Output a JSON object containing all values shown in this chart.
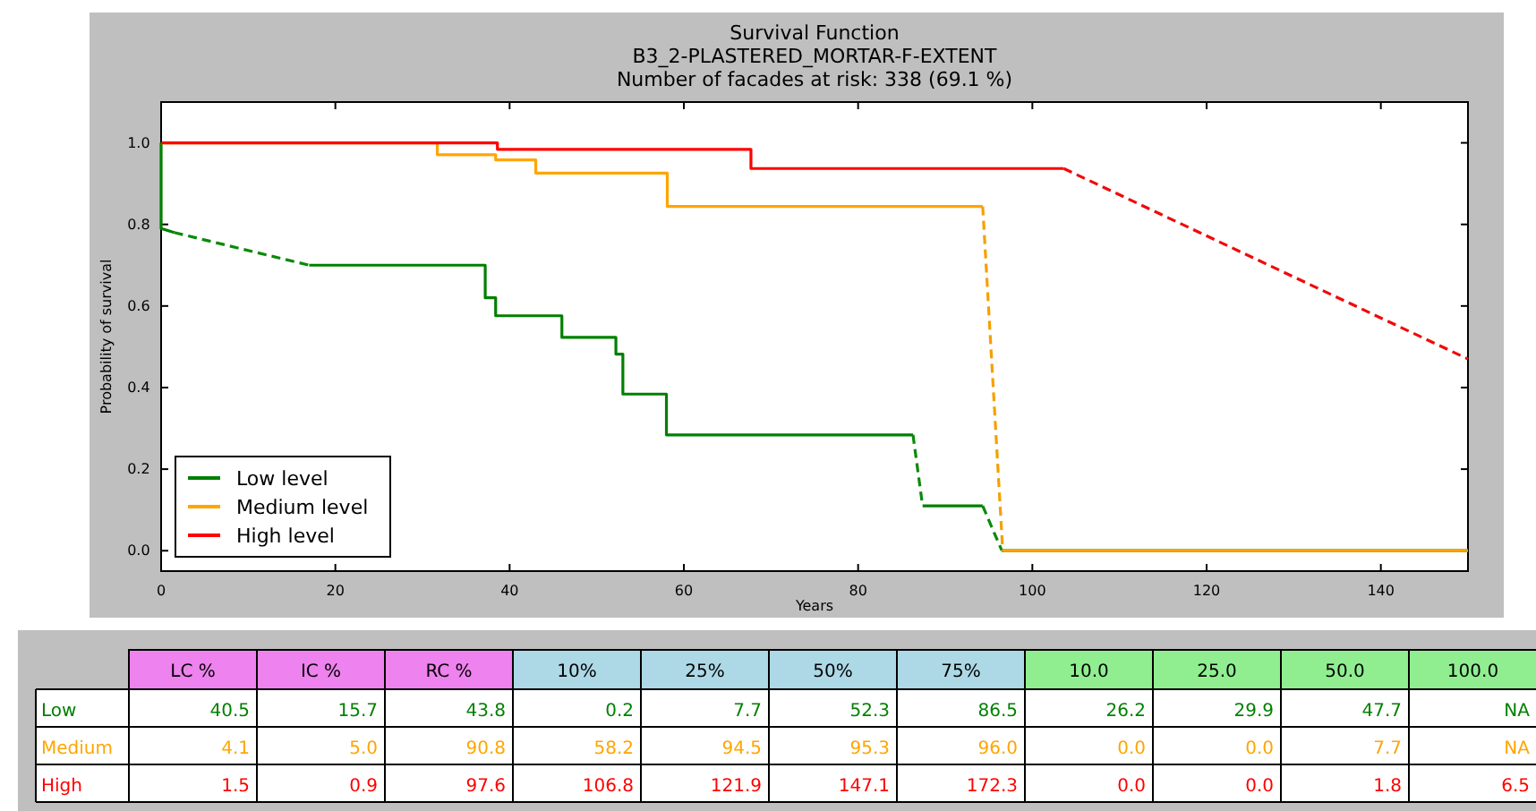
{
  "chart_data": [
    {
      "type": "line",
      "title": "Survival Function",
      "subtitle": "B3_2-PLASTERED_MORTAR-F-EXTENT\nNumber of facades at risk: 338 (69.1 %)",
      "xlabel": "Years",
      "ylabel": "Probability of survival",
      "xlim": [
        0,
        150
      ],
      "ylim": [
        -0.05,
        1.1
      ],
      "xticks": [
        0,
        20,
        40,
        60,
        80,
        100,
        120,
        140
      ],
      "yticks": [
        {
          "value": 0,
          "label": "0.0"
        },
        {
          "value": 0.2,
          "label": "0.2"
        },
        {
          "value": 0.4,
          "label": "0.4"
        },
        {
          "value": 0.6,
          "label": "0.6"
        },
        {
          "value": 0.8,
          "label": "0.8"
        },
        {
          "value": 1,
          "label": "1.0"
        }
      ],
      "grid": false,
      "legend": "bottom left",
      "line_style": "solid",
      "series": [
        {
          "name": "Low level",
          "color": "#008000",
          "x": [
            0,
            0,
            1.5,
            null,
            17,
            37.2,
            37.2,
            38.4,
            38.4,
            46,
            46,
            52.2,
            52.2,
            53,
            53,
            58,
            58,
            86.3,
            null,
            87.4,
            94.3,
            null,
            96.5,
            150
          ],
          "values": [
            1,
            0.79,
            0.78,
            null,
            0.7,
            0.7,
            0.62,
            0.62,
            0.576,
            0.576,
            0.523,
            0.523,
            0.482,
            0.482,
            0.384,
            0.384,
            0.284,
            0.284,
            null,
            0.11,
            0.11,
            null,
            0,
            0
          ]
        },
        {
          "color": "#0a8a0a",
          "line_style": "dashed",
          "x": [
            1.5,
            17
          ],
          "values": [
            0.78,
            0.7
          ]
        },
        {
          "color": "#0a8a0a",
          "line_style": "dashed",
          "x": [
            86.3,
            87.4
          ],
          "values": [
            0.284,
            0.11
          ]
        },
        {
          "color": "#0a8a0a",
          "line_style": "dashed",
          "x": [
            94.3,
            96.5
          ],
          "values": [
            0.11,
            0
          ]
        },
        {
          "name": "Medium level",
          "color": "#ffa500",
          "x": [
            0,
            31.7,
            31.7,
            38.4,
            38.4,
            43,
            43,
            58.1,
            58.1,
            94.3,
            null,
            96.6,
            150
          ],
          "values": [
            1,
            1,
            0.971,
            0.971,
            0.958,
            0.958,
            0.926,
            0.926,
            0.844,
            0.844,
            null,
            0,
            0
          ]
        },
        {
          "color": "#f5a000",
          "line_style": "dashed",
          "x": [
            94.3,
            96.6
          ],
          "values": [
            0.844,
            0
          ]
        },
        {
          "name": "High level",
          "color": "#ff0000",
          "x": [
            0,
            38.6,
            38.6,
            67.7,
            67.7,
            103.6
          ],
          "values": [
            1,
            1,
            0.984,
            0.984,
            0.937,
            0.937
          ]
        },
        {
          "color": "#f00a0a",
          "line_style": "dashed",
          "x": [
            103.6,
            150
          ],
          "values": [
            0.937,
            0.47
          ]
        }
      ]
    },
    {
      "type": "other",
      "categories": [
        "LC %",
        "IC %",
        "RC %",
        "10%",
        "25%",
        "50%",
        "75%",
        "10.0",
        "25.0",
        "50.0",
        "100.0"
      ],
      "colors": [
        "#ee82ee",
        "#ee82ee",
        "#ee82ee",
        "#add8e6",
        "#add8e6",
        "#add8e6",
        "#add8e6",
        "#90ee90",
        "#90ee90",
        "#90ee90",
        "#90ee90"
      ],
      "series": [
        {
          "name": "Low",
          "color": "#008000",
          "values": [
            40.5,
            15.7,
            43.8,
            0.2,
            7.7,
            52.3,
            86.5,
            26.2,
            29.9,
            47.7,
            null
          ],
          "value_labels": [
            "40.5",
            "15.7",
            "43.8",
            "0.2",
            "7.7",
            "52.3",
            "86.5",
            "26.2",
            "29.9",
            "47.7",
            "NA"
          ]
        },
        {
          "name": "Medium",
          "color": "#ffa500",
          "values": [
            4.1,
            5.0,
            90.8,
            58.2,
            94.5,
            95.3,
            96.0,
            0.0,
            0.0,
            7.7,
            null
          ],
          "value_labels": [
            "4.1",
            "5.0",
            "90.8",
            "58.2",
            "94.5",
            "95.3",
            "96.0",
            "0.0",
            "0.0",
            "7.7",
            "NA"
          ]
        },
        {
          "name": "High",
          "color": "#ff0000",
          "values": [
            1.5,
            0.9,
            97.6,
            106.8,
            121.9,
            147.1,
            172.3,
            0.0,
            0.0,
            1.8,
            6.5
          ],
          "value_labels": [
            "1.5",
            "0.9",
            "97.6",
            "106.8",
            "121.9",
            "147.1",
            "172.3",
            "0.0",
            "0.0",
            "1.8",
            "6.5"
          ]
        }
      ]
    }
  ]
}
